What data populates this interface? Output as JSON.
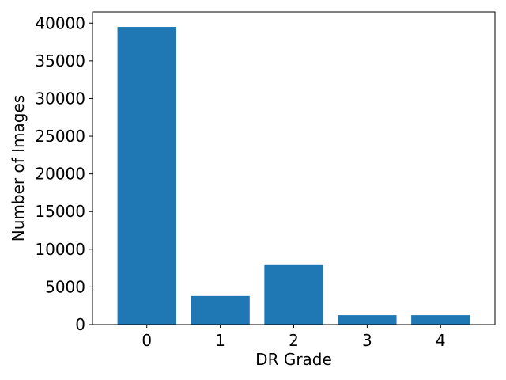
{
  "chart_data": {
    "type": "bar",
    "categories": [
      "0",
      "1",
      "2",
      "3",
      "4"
    ],
    "values": [
      39500,
      3800,
      7900,
      1250,
      1250
    ],
    "title": "",
    "xlabel": "DR Grade",
    "ylabel": "Number of Images",
    "ylim": [
      0,
      41500
    ],
    "yticks": [
      0,
      5000,
      10000,
      15000,
      20000,
      25000,
      30000,
      35000,
      40000
    ],
    "grid": false,
    "colors": {
      "bar": "#1f77b4"
    }
  }
}
